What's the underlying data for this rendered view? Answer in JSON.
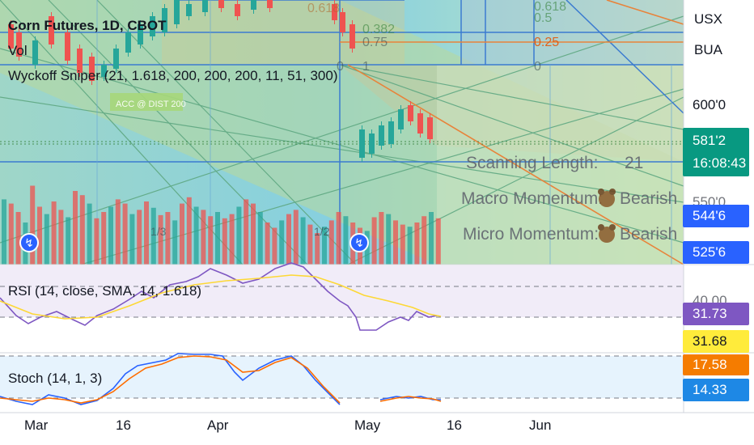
{
  "header": {
    "symbol_title": "Corn Futures, 1D, CBOT",
    "volume_label": "Vol",
    "indicator_label": "Wyckoff Sniper (21, 1.618, 200, 200, 200, 11, 51, 300)"
  },
  "top_right": {
    "currency": "USX",
    "unit": "BUA"
  },
  "price_axis": {
    "tick_600": "600'0",
    "tick_550_partial": "550'0",
    "tick_40": "40.00",
    "current_price": "581'2",
    "countdown": "16:08:43",
    "badge_1": "544'6",
    "badge_2": "525'6"
  },
  "rsi": {
    "label": "RSI (14, close, SMA, 14, 1.618)",
    "value_1": "31.73",
    "value_2": "31.68"
  },
  "stoch": {
    "label": "Stoch (14, 1, 3)",
    "value_1": "17.58",
    "value_2": "14.33"
  },
  "time_axis": {
    "t1": "Mar",
    "t2": "16",
    "t3": "Apr",
    "t4": "May",
    "t5": "16",
    "t6": "Jun"
  },
  "wyckoff_panel": {
    "scanning_label": "Scanning Length:",
    "scanning_value": "21",
    "macro_label": "Macro Momentum:",
    "macro_value": "Bearish",
    "micro_label": "Micro Momentum:",
    "micro_value": "Bearish"
  },
  "annotations": {
    "acc_dist": "ACC @ DIST 200",
    "half_mark": "1/2",
    "third_mark": "1/3"
  },
  "fib_levels": [
    "0.618",
    "0.5",
    "0.382",
    "0.25",
    "0",
    "0.75",
    "1"
  ],
  "colors": {
    "bull_candle": "#26a69a",
    "bear_candle": "#ef5350",
    "rsi_line": "#7e57c2",
    "rsi_ma": "#fdd835",
    "stoch_k": "#2962ff",
    "stoch_d": "#ff6d00",
    "price_badge_green": "#089981",
    "badge_blue": "#2962ff",
    "rsi_badge": "#7e57c2",
    "rsi_ma_badge": "#ffeb3b",
    "stoch_k_badge": "#1e88e5",
    "stoch_d_badge": "#f57c00"
  }
}
